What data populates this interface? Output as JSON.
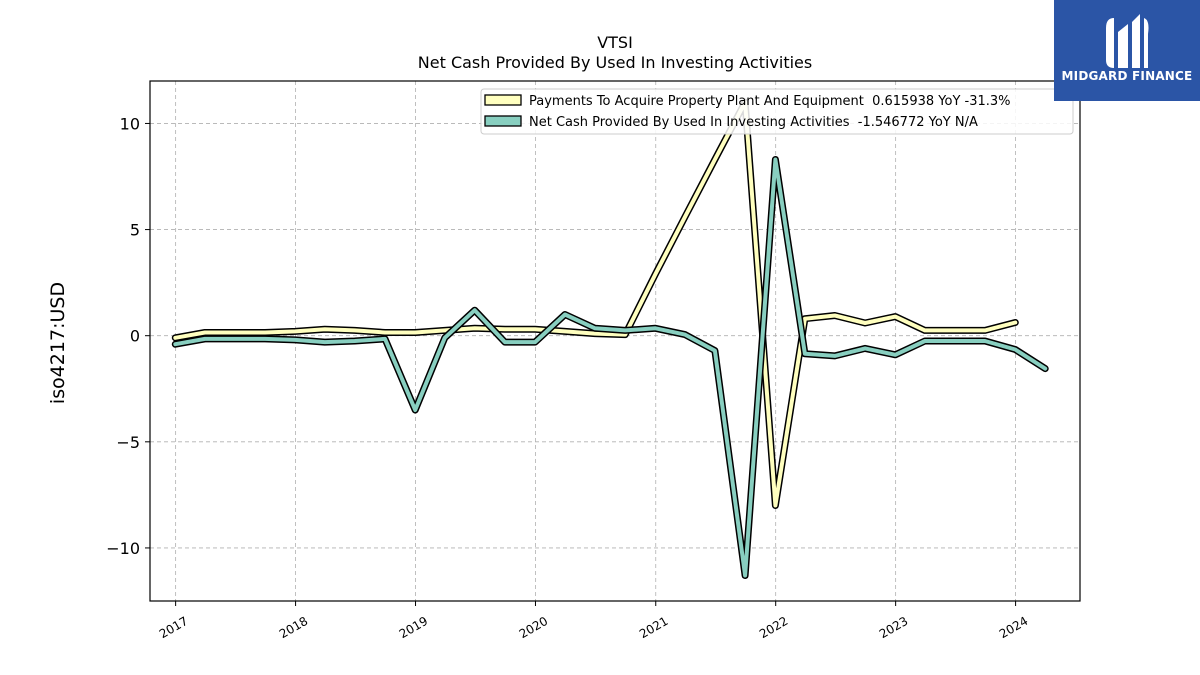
{
  "brand": {
    "name": "MIDGARD FINANCE",
    "bg_color": "#2b55a6"
  },
  "chart_data": {
    "type": "line",
    "title": "VTSI",
    "subtitle": "Net Cash Provided By Used In Investing Activities",
    "xlabel": "",
    "ylabel": "iso4217:USD",
    "xlim": [
      "2016-10-15",
      "2024-07-15"
    ],
    "ylim": [
      -12.5,
      12
    ],
    "x_ticks": [
      "2017",
      "2018",
      "2019",
      "2020",
      "2021",
      "2022",
      "2023",
      "2024"
    ],
    "y_ticks": [
      10,
      5,
      0,
      -5,
      -10
    ],
    "y_tick_labels": [
      "10",
      "5",
      "0",
      "−5",
      "−10"
    ],
    "grid": true,
    "legend_position": "top-right",
    "series": [
      {
        "name": "Payments To Acquire Property Plant And Equipment",
        "legend": "Payments To Acquire Property Plant And Equipment  0.615938 YoY -31.3%",
        "color": "#ffffbf",
        "x": [
          "2016-12-31",
          "2017-03-31",
          "2017-06-30",
          "2017-09-30",
          "2017-12-31",
          "2018-03-31",
          "2018-06-30",
          "2018-09-30",
          "2018-12-31",
          "2019-03-31",
          "2019-06-30",
          "2019-09-30",
          "2019-12-31",
          "2020-03-31",
          "2020-06-30",
          "2020-09-30",
          "2020-12-31",
          "2021-03-31",
          "2021-06-30",
          "2021-09-30",
          "2021-12-31",
          "2022-03-31",
          "2022-06-30",
          "2022-09-30",
          "2022-12-31",
          "2023-03-31",
          "2023-06-30",
          "2023-09-30",
          "2023-12-31"
        ],
        "values": [
          -0.1,
          0.15,
          0.15,
          0.15,
          0.2,
          0.3,
          0.25,
          0.15,
          0.15,
          0.25,
          0.35,
          0.3,
          0.3,
          0.2,
          0.1,
          0.05,
          2.9,
          5.6,
          8.3,
          11.0,
          -8.0,
          0.8,
          0.95,
          0.6,
          0.9,
          0.25,
          0.25,
          0.25,
          0.62
        ]
      },
      {
        "name": "Net Cash Provided By Used In Investing Activities",
        "legend": "Net Cash Provided By Used In Investing Activities  -1.546772 YoY N/A",
        "color": "#88cfc0",
        "x": [
          "2016-12-31",
          "2017-03-31",
          "2017-06-30",
          "2017-09-30",
          "2017-12-31",
          "2018-03-31",
          "2018-06-30",
          "2018-09-30",
          "2018-12-31",
          "2019-03-31",
          "2019-06-30",
          "2019-09-30",
          "2019-12-31",
          "2020-03-31",
          "2020-06-30",
          "2020-09-30",
          "2020-12-31",
          "2021-03-31",
          "2021-06-30",
          "2021-09-30",
          "2021-12-31",
          "2022-03-31",
          "2022-06-30",
          "2022-09-30",
          "2022-12-31",
          "2023-03-31",
          "2023-06-30",
          "2023-09-30",
          "2023-12-31",
          "2024-03-31"
        ],
        "values": [
          -0.4,
          -0.15,
          -0.15,
          -0.15,
          -0.2,
          -0.3,
          -0.25,
          -0.15,
          -3.5,
          -0.1,
          1.2,
          -0.3,
          -0.3,
          1.0,
          0.35,
          0.25,
          0.35,
          0.05,
          -0.7,
          -11.3,
          8.3,
          -0.85,
          -0.95,
          -0.6,
          -0.9,
          -0.25,
          -0.25,
          -0.25,
          -0.65,
          -1.55
        ]
      }
    ]
  }
}
